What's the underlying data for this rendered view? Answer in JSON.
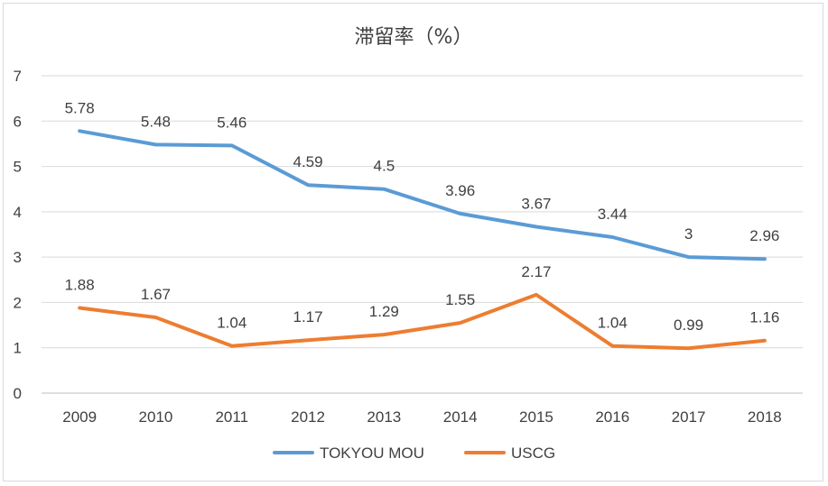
{
  "chart_data": {
    "type": "line",
    "title": "滞留率（%）",
    "xlabel": "",
    "ylabel": "",
    "categories": [
      "2009",
      "2010",
      "2011",
      "2012",
      "2013",
      "2014",
      "2015",
      "2016",
      "2017",
      "2018"
    ],
    "ylim": [
      0,
      7
    ],
    "yticks": [
      "0",
      "1",
      "2",
      "3",
      "4",
      "5",
      "6",
      "7"
    ],
    "grid": true,
    "legend_position": "bottom",
    "series": [
      {
        "name": "TOKYOU MOU",
        "color": "#5b9bd5",
        "values": [
          5.78,
          5.48,
          5.46,
          4.59,
          4.5,
          3.96,
          3.67,
          3.44,
          3,
          2.96
        ],
        "labels": [
          "5.78",
          "5.48",
          "5.46",
          "4.59",
          "4.5",
          "3.96",
          "3.67",
          "3.44",
          "3",
          "2.96"
        ]
      },
      {
        "name": "USCG",
        "color": "#ed7d31",
        "values": [
          1.88,
          1.67,
          1.04,
          1.17,
          1.29,
          1.55,
          2.17,
          1.04,
          0.99,
          1.16
        ],
        "labels": [
          "1.88",
          "1.67",
          "1.04",
          "1.17",
          "1.29",
          "1.55",
          "2.17",
          "1.04",
          "0.99",
          "1.16"
        ]
      }
    ]
  }
}
